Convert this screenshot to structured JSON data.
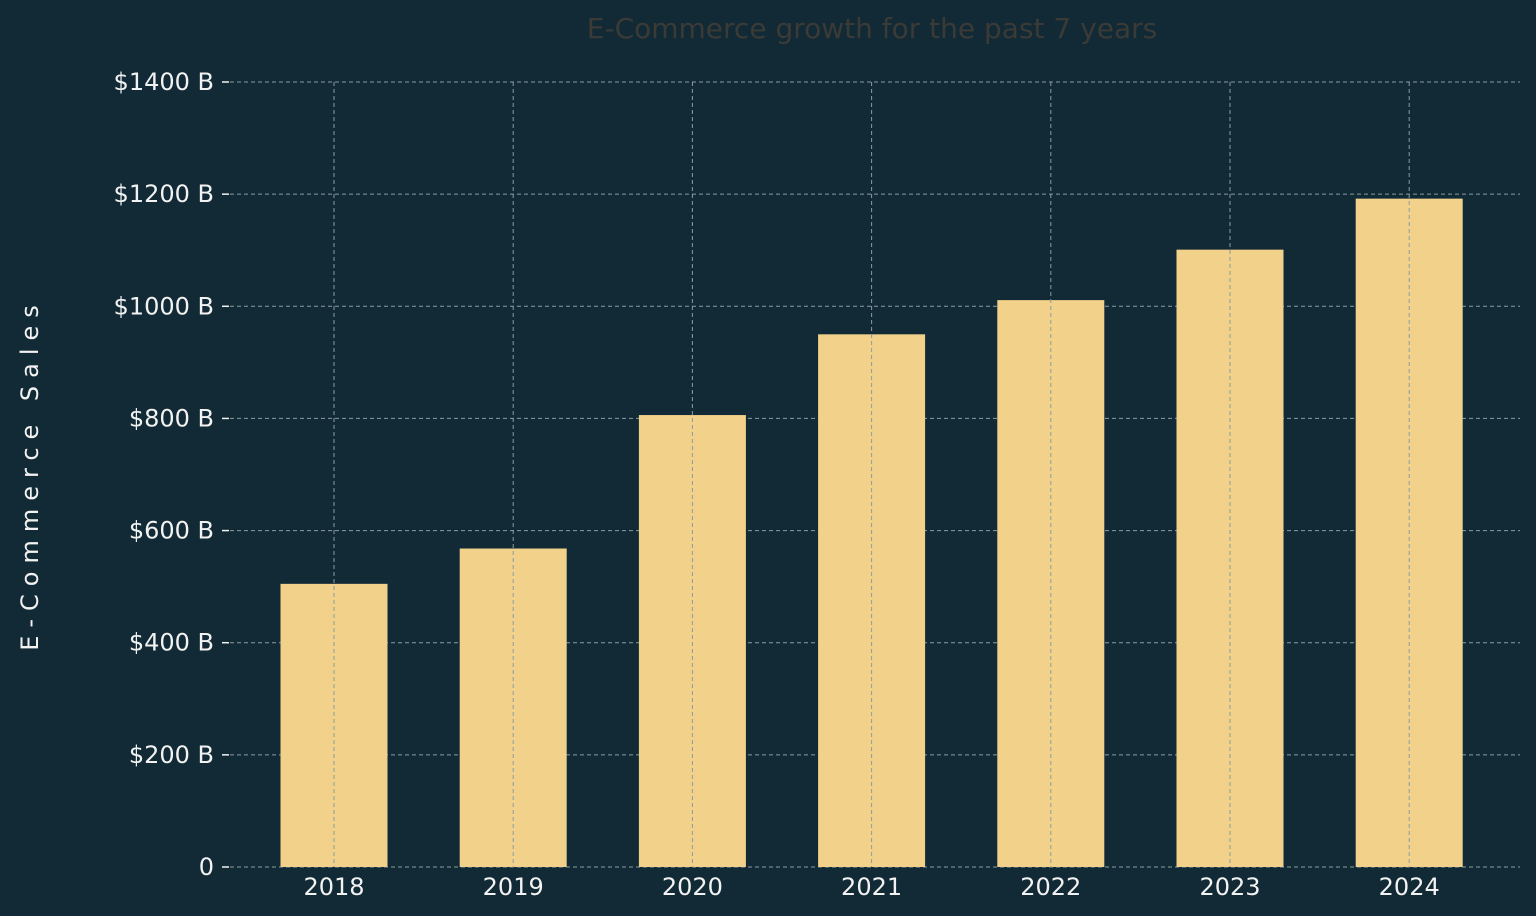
{
  "colors": {
    "background": "#112a35",
    "bar": "#f2d28b",
    "grid": "#8a9ca3",
    "text": "#f2f2f2",
    "title": "#3b3a36"
  },
  "chart_data": {
    "type": "bar",
    "title": "E-Commerce growth for the past 7 years",
    "xlabel": "",
    "ylabel": "E-Commerce Sales",
    "categories": [
      "2018",
      "2019",
      "2020",
      "2021",
      "2022",
      "2023",
      "2024"
    ],
    "values": [
      505,
      568,
      806,
      950,
      1011,
      1101,
      1192
    ],
    "ylim": [
      0,
      1400
    ],
    "yticks": [
      0,
      200,
      400,
      600,
      800,
      1000,
      1200,
      1400
    ],
    "ytick_labels": [
      "0",
      "$200 B",
      "$400 B",
      "$600 B",
      "$800 B",
      "$1000 B",
      "$1200 B",
      "$1400 B"
    ],
    "grid": true,
    "grid_style": "dashed",
    "legend": false
  }
}
